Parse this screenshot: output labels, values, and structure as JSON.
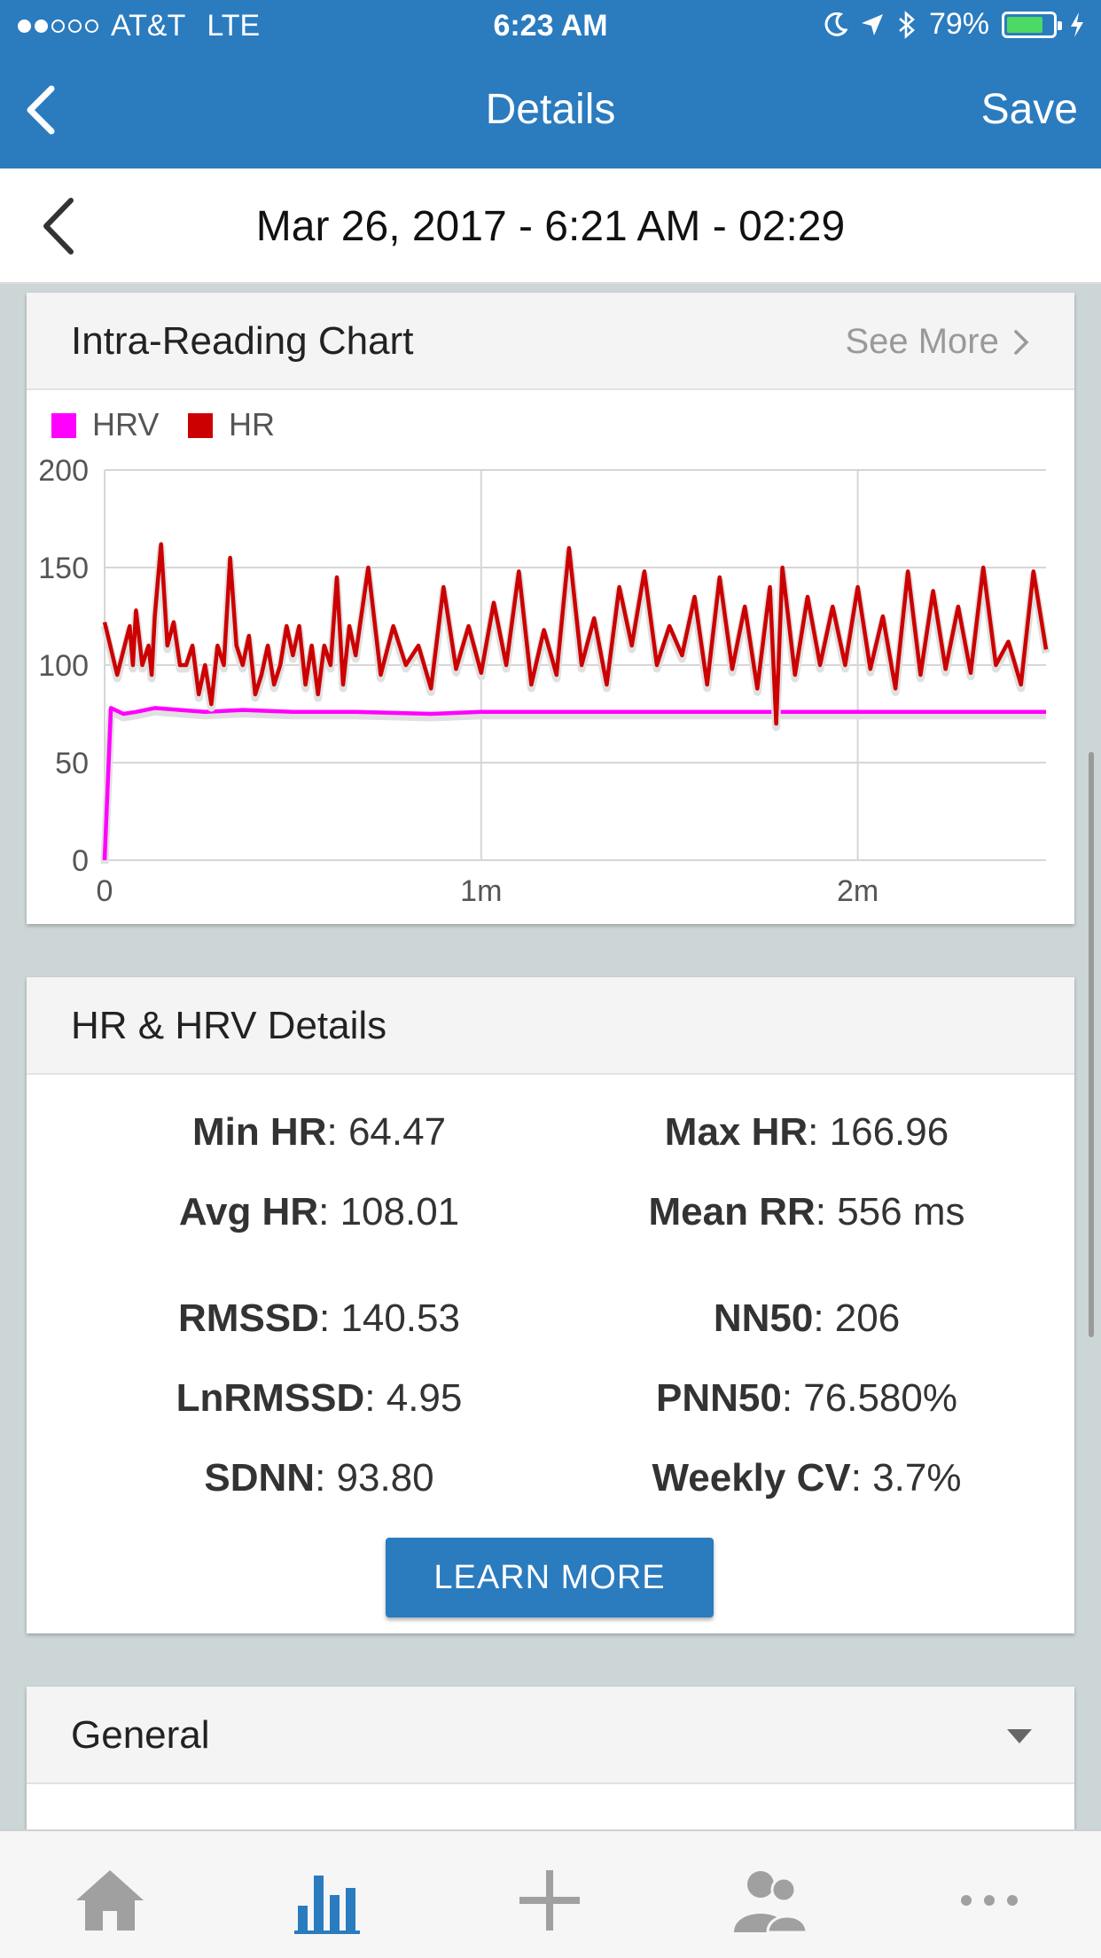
{
  "status_bar": {
    "carrier": "AT&T",
    "network": "LTE",
    "time": "6:23 AM",
    "battery": "79%",
    "battery_level": 0.79
  },
  "nav": {
    "title": "Details",
    "save_label": "Save"
  },
  "date_header": {
    "text": "Mar 26, 2017 - 6:21 AM - 02:29"
  },
  "chart_card": {
    "title": "Intra-Reading Chart",
    "see_more": "See More"
  },
  "chart_data": {
    "type": "line",
    "title": "",
    "xlabel": "",
    "ylabel": "",
    "ylim": [
      0,
      200
    ],
    "xlim": [
      0,
      150
    ],
    "y_ticks": [
      "200",
      "150",
      "100",
      "50",
      "0"
    ],
    "x_ticks": [
      "0",
      "1m",
      "2m"
    ],
    "grid": true,
    "legend": "top-left",
    "series": [
      {
        "name": "HRV",
        "color": "#ff00ff",
        "x": [
          0,
          1,
          3,
          5,
          8,
          12,
          16,
          22,
          30,
          40,
          52,
          60,
          70,
          75,
          80,
          90,
          100,
          110,
          120,
          130,
          140,
          150
        ],
        "values": [
          0,
          78,
          75,
          76,
          78,
          77,
          76,
          77,
          76,
          76,
          75,
          76,
          76,
          76,
          76,
          76,
          76,
          76,
          76,
          76,
          76,
          76
        ]
      },
      {
        "name": "HR",
        "color": "#cc0000",
        "x": [
          0,
          2,
          4,
          4.5,
          5,
          6,
          7,
          7.5,
          8,
          9,
          10,
          11,
          12,
          13,
          14,
          15,
          16,
          17,
          18,
          19,
          20,
          21,
          22,
          23,
          24,
          25,
          26,
          27,
          28,
          29,
          30,
          31,
          32,
          33,
          34,
          35,
          36,
          37,
          38,
          39,
          40,
          42,
          44,
          46,
          48,
          50,
          52,
          54,
          56,
          58,
          60,
          62,
          64,
          66,
          68,
          70,
          72,
          74,
          76,
          78,
          80,
          82,
          84,
          86,
          88,
          90,
          92,
          94,
          96,
          98,
          100,
          102,
          104,
          106,
          107,
          108,
          110,
          112,
          114,
          116,
          118,
          120,
          122,
          124,
          126,
          128,
          130,
          132,
          134,
          136,
          138,
          140,
          142,
          144,
          146,
          148,
          150
        ],
        "values": [
          122,
          95,
          120,
          100,
          128,
          100,
          110,
          95,
          125,
          162,
          110,
          122,
          100,
          100,
          110,
          85,
          100,
          80,
          110,
          100,
          155,
          110,
          100,
          115,
          85,
          95,
          110,
          90,
          100,
          120,
          105,
          120,
          90,
          110,
          85,
          110,
          100,
          145,
          90,
          120,
          105,
          150,
          95,
          120,
          100,
          110,
          88,
          140,
          98,
          120,
          96,
          132,
          100,
          148,
          90,
          118,
          95,
          160,
          100,
          124,
          90,
          140,
          110,
          148,
          100,
          120,
          105,
          135,
          90,
          145,
          98,
          130,
          88,
          140,
          70,
          150,
          95,
          135,
          100,
          130,
          100,
          140,
          98,
          125,
          88,
          148,
          95,
          138,
          98,
          130,
          96,
          150,
          100,
          112,
          90,
          148,
          108
        ]
      }
    ]
  },
  "details_card": {
    "title": "HR & HRV Details",
    "stats": [
      {
        "label": "Min HR",
        "value": "64.47"
      },
      {
        "label": "Max HR",
        "value": "166.96"
      },
      {
        "label": "Avg HR",
        "value": "108.01"
      },
      {
        "label": "Mean RR",
        "value": "556 ms"
      },
      {
        "label": "RMSSD",
        "value": "140.53"
      },
      {
        "label": "NN50",
        "value": "206"
      },
      {
        "label": "LnRMSSD",
        "value": "4.95"
      },
      {
        "label": "PNN50",
        "value": "76.580%"
      },
      {
        "label": "SDNN",
        "value": "93.80"
      },
      {
        "label": "Weekly CV",
        "value": "3.7%"
      }
    ],
    "learn_more": "LEARN MORE"
  },
  "general_card": {
    "title": "General"
  },
  "tab_bar": {
    "tabs": [
      "home-icon",
      "bar-chart-icon",
      "plus-icon",
      "people-icon",
      "more-icon"
    ],
    "active_index": 1,
    "active_color": "#2b7bbf",
    "inactive_color": "#a0a0a0"
  },
  "colors": {
    "brand": "#2b7bbf",
    "hrv": "#ff00ff",
    "hr": "#cc0000"
  }
}
